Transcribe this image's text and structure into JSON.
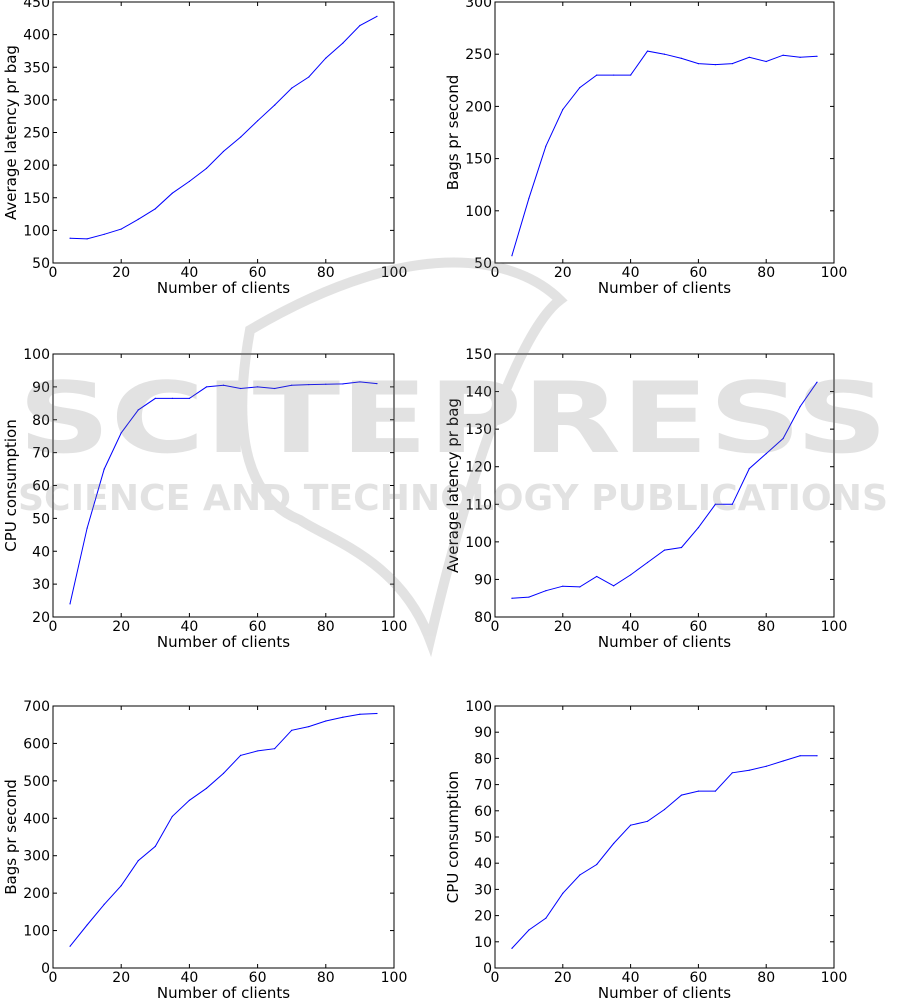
{
  "figure": {
    "watermark": {
      "title": "SCITEPRESS",
      "subtitle": "SCIENCE AND TECHNOLOGY PUBLICATIONS"
    }
  },
  "chart_data": [
    {
      "type": "line",
      "xlabel": "Number of clients",
      "ylabel": "Average latency pr bag",
      "xlim": [
        0,
        100
      ],
      "ylim": [
        50,
        450
      ],
      "xticks": [
        0,
        20,
        40,
        60,
        80,
        100
      ],
      "yticks": [
        50,
        100,
        150,
        200,
        250,
        300,
        350,
        400,
        450
      ],
      "grid": false,
      "color": "#0000ff",
      "x": [
        5,
        10,
        15,
        20,
        25,
        30,
        35,
        40,
        45,
        50,
        55,
        60,
        65,
        70,
        75,
        80,
        85,
        90,
        95
      ],
      "y": [
        88,
        87,
        94,
        102,
        117,
        133,
        157,
        175,
        195,
        221,
        243,
        268,
        292,
        318,
        335,
        364,
        387,
        414,
        428
      ]
    },
    {
      "type": "line",
      "xlabel": "Number of clients",
      "ylabel": "Bags pr second",
      "xlim": [
        0,
        100
      ],
      "ylim": [
        50,
        300
      ],
      "xticks": [
        0,
        20,
        40,
        60,
        80,
        100
      ],
      "yticks": [
        50,
        100,
        150,
        200,
        250,
        300
      ],
      "grid": false,
      "color": "#0000ff",
      "x": [
        5,
        10,
        15,
        20,
        25,
        30,
        35,
        40,
        45,
        50,
        55,
        60,
        65,
        70,
        75,
        80,
        85,
        90,
        95
      ],
      "y": [
        57,
        112,
        162,
        197,
        218,
        230,
        230,
        230,
        253,
        250,
        246,
        241,
        240,
        241,
        247,
        243,
        249,
        247,
        248
      ]
    },
    {
      "type": "line",
      "xlabel": "Number of clients",
      "ylabel": "CPU consumption",
      "xlim": [
        0,
        100
      ],
      "ylim": [
        20,
        100
      ],
      "xticks": [
        0,
        20,
        40,
        60,
        80,
        100
      ],
      "yticks": [
        20,
        30,
        40,
        50,
        60,
        70,
        80,
        90,
        100
      ],
      "grid": false,
      "color": "#0000ff",
      "x": [
        5,
        10,
        15,
        20,
        25,
        30,
        35,
        40,
        45,
        50,
        55,
        60,
        65,
        70,
        75,
        80,
        85,
        90,
        95
      ],
      "y": [
        24,
        47,
        65,
        76,
        83,
        86.5,
        86.5,
        86.5,
        90,
        90.5,
        89.5,
        90,
        89.5,
        90.5,
        90.7,
        90.8,
        90.9,
        91.5,
        91
      ]
    },
    {
      "type": "line",
      "xlabel": "Number of clients",
      "ylabel": "Average latency pr bag",
      "xlim": [
        0,
        100
      ],
      "ylim": [
        80,
        150
      ],
      "xticks": [
        0,
        20,
        40,
        60,
        80,
        100
      ],
      "yticks": [
        80,
        90,
        100,
        110,
        120,
        130,
        140,
        150
      ],
      "grid": false,
      "color": "#0000ff",
      "x": [
        5,
        10,
        15,
        20,
        25,
        30,
        35,
        40,
        45,
        50,
        55,
        60,
        65,
        70,
        75,
        80,
        85,
        90,
        95
      ],
      "y": [
        85,
        85.3,
        87,
        88.2,
        88,
        90.8,
        88.3,
        91.2,
        94.5,
        97.8,
        98.5,
        103.8,
        110,
        110,
        119.5,
        123.5,
        127.5,
        136,
        142.5
      ]
    },
    {
      "type": "line",
      "xlabel": "Number of clients",
      "ylabel": "Bags pr second",
      "xlim": [
        0,
        100
      ],
      "ylim": [
        0,
        700
      ],
      "xticks": [
        0,
        20,
        40,
        60,
        80,
        100
      ],
      "yticks": [
        0,
        100,
        200,
        300,
        400,
        500,
        600,
        700
      ],
      "grid": false,
      "color": "#0000ff",
      "x": [
        5,
        10,
        15,
        20,
        25,
        30,
        35,
        40,
        45,
        50,
        55,
        60,
        65,
        70,
        75,
        80,
        85,
        90,
        95
      ],
      "y": [
        58,
        115,
        170,
        220,
        287,
        325,
        405,
        448,
        480,
        520,
        568,
        580,
        586,
        635,
        645,
        660,
        670,
        678,
        680
      ]
    },
    {
      "type": "line",
      "xlabel": "Number of clients",
      "ylabel": "CPU consumption",
      "xlim": [
        0,
        100
      ],
      "ylim": [
        0,
        100
      ],
      "xticks": [
        0,
        20,
        40,
        60,
        80,
        100
      ],
      "yticks": [
        0,
        10,
        20,
        30,
        40,
        50,
        60,
        70,
        80,
        90,
        100
      ],
      "grid": false,
      "color": "#0000ff",
      "x": [
        5,
        10,
        15,
        20,
        25,
        30,
        35,
        40,
        45,
        50,
        55,
        60,
        65,
        70,
        75,
        80,
        85,
        90,
        95
      ],
      "y": [
        7.5,
        14.5,
        19,
        28.5,
        35.5,
        39.5,
        47.5,
        54.5,
        56,
        60.5,
        66,
        67.5,
        67.5,
        74.5,
        75.5,
        77,
        79,
        81,
        81
      ]
    }
  ]
}
